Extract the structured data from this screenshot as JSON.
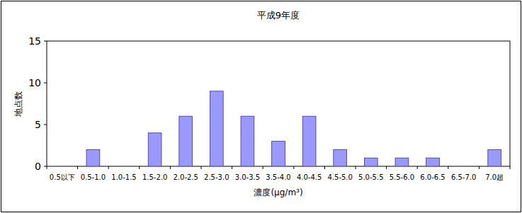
{
  "chart_data": {
    "type": "bar",
    "title": "平成9年度",
    "categories": [
      "0.5以下",
      "0.5-1.0",
      "1.0-1.5",
      "1.5-2.0",
      "2.0-2.5",
      "2.5-3.0",
      "3.0-3.5",
      "3.5-4.0",
      "4.0-4.5",
      "4.5-5.0",
      "5.0-5.5",
      "5.5-6.0",
      "6.0-6.5",
      "6.5-7.0",
      "7.0超"
    ],
    "values": [
      0,
      2,
      0,
      4,
      6,
      9,
      6,
      3,
      6,
      2,
      1,
      1,
      1,
      0,
      2
    ],
    "color": "#9999ff",
    "x_label": "濃度(μg/m³)",
    "y_label": "地点数",
    "ylim": [
      0,
      15
    ],
    "yticks": [
      0,
      5,
      10,
      15
    ],
    "grid": false
  }
}
